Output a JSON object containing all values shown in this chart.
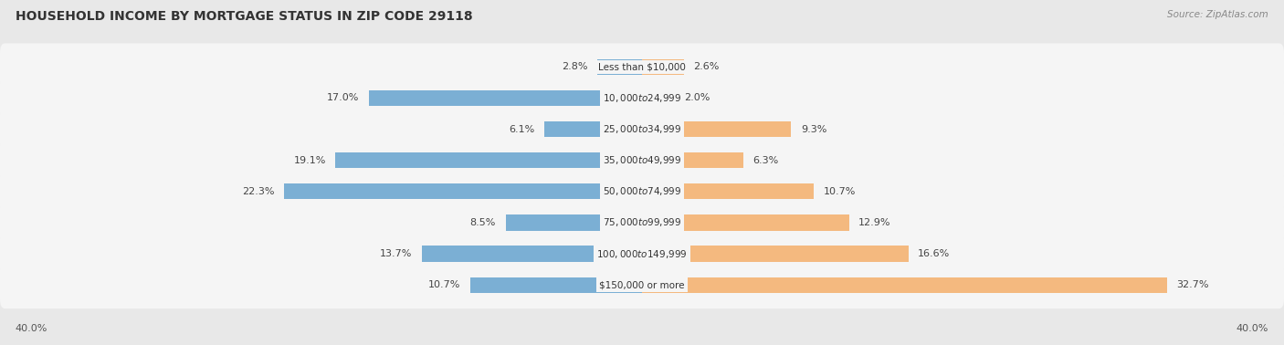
{
  "title": "HOUSEHOLD INCOME BY MORTGAGE STATUS IN ZIP CODE 29118",
  "source": "Source: ZipAtlas.com",
  "categories": [
    "Less than $10,000",
    "$10,000 to $24,999",
    "$25,000 to $34,999",
    "$35,000 to $49,999",
    "$50,000 to $74,999",
    "$75,000 to $99,999",
    "$100,000 to $149,999",
    "$150,000 or more"
  ],
  "without_mortgage": [
    2.8,
    17.0,
    6.1,
    19.1,
    22.3,
    8.5,
    13.7,
    10.7
  ],
  "with_mortgage": [
    2.6,
    2.0,
    9.3,
    6.3,
    10.7,
    12.9,
    16.6,
    32.7
  ],
  "without_mortgage_color": "#7bafd4",
  "with_mortgage_color": "#f4b97f",
  "background_color": "#e8e8e8",
  "row_bg_color": "#f5f5f5",
  "axis_limit": 40.0,
  "title_fontsize": 10,
  "label_fontsize": 8,
  "category_fontsize": 7.5,
  "legend_fontsize": 8.5,
  "source_fontsize": 7.5
}
